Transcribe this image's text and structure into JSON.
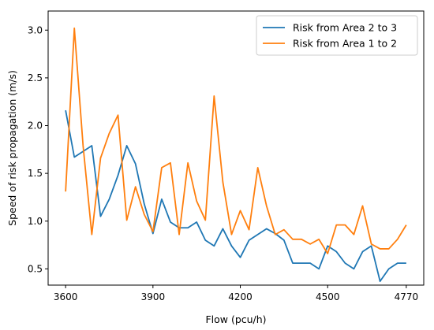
{
  "chart_data": {
    "type": "line",
    "title": "",
    "xlabel": "Flow (pcu/h)",
    "ylabel": "Speed of risk propagation (m/s)",
    "xlim": [
      3540,
      4830
    ],
    "ylim": [
      0.33,
      3.2
    ],
    "xticks": [
      3600,
      3900,
      4200,
      4500,
      4770
    ],
    "yticks": [
      0.5,
      1.0,
      1.5,
      2.0,
      2.5,
      3.0
    ],
    "ytick_labels": [
      "0.5",
      "1.0",
      "1.5",
      "2.0",
      "2.5",
      "3.0"
    ],
    "legend_position": "top-right",
    "x": [
      3600,
      3630,
      3660,
      3690,
      3720,
      3750,
      3780,
      3810,
      3840,
      3870,
      3900,
      3930,
      3960,
      3990,
      4020,
      4050,
      4080,
      4110,
      4140,
      4170,
      4200,
      4230,
      4260,
      4290,
      4320,
      4350,
      4380,
      4410,
      4440,
      4470,
      4500,
      4530,
      4560,
      4590,
      4620,
      4650,
      4680,
      4710,
      4740,
      4770
    ],
    "series": [
      {
        "name": "Risk from Area 2 to 3",
        "color": "#1f77b4",
        "values": [
          2.16,
          1.67,
          1.73,
          1.79,
          1.05,
          1.23,
          1.48,
          1.79,
          1.6,
          1.18,
          0.87,
          1.23,
          0.99,
          0.93,
          0.93,
          0.99,
          0.8,
          0.74,
          0.92,
          0.74,
          0.62,
          0.8,
          0.86,
          0.92,
          0.87,
          0.8,
          0.56,
          0.56,
          0.56,
          0.5,
          0.74,
          0.68,
          0.56,
          0.5,
          0.68,
          0.74,
          0.37,
          0.5,
          0.56,
          0.56
        ]
      },
      {
        "name": "Risk from Area 1 to 2",
        "color": "#ff7f0e",
        "values": [
          1.31,
          3.02,
          1.79,
          0.86,
          1.66,
          1.92,
          2.11,
          1.01,
          1.36,
          1.07,
          0.89,
          1.56,
          1.61,
          0.86,
          1.61,
          1.21,
          1.01,
          2.31,
          1.41,
          0.86,
          1.11,
          0.91,
          1.56,
          1.16,
          0.86,
          0.91,
          0.81,
          0.81,
          0.76,
          0.81,
          0.66,
          0.96,
          0.96,
          0.86,
          1.16,
          0.76,
          0.71,
          0.71,
          0.81,
          0.96
        ]
      }
    ]
  }
}
